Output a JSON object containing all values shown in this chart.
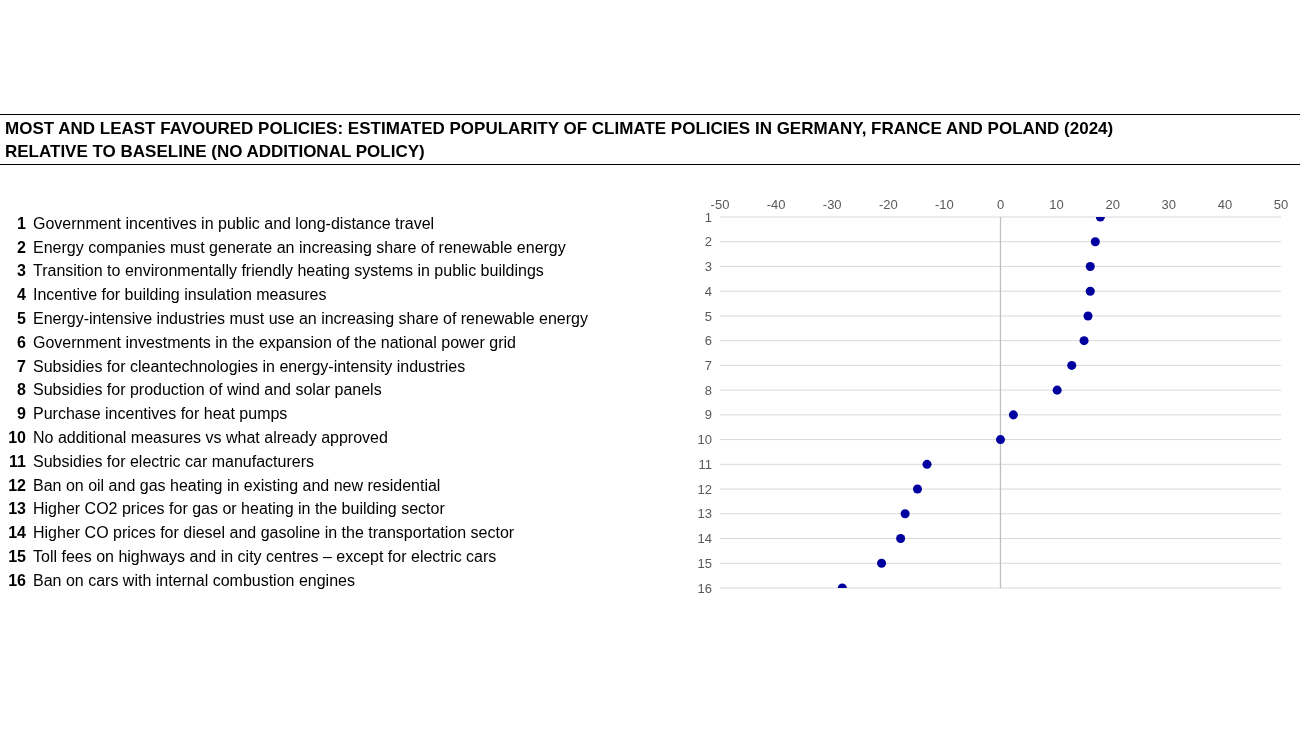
{
  "chart_data": {
    "type": "scatter",
    "orientation": "horizontal",
    "title": "MOST AND LEAST FAVOURED POLICIES: ESTIMATED POPULARITY OF CLIMATE POLICIES IN GERMANY, FRANCE AND POLAND (2024)",
    "subtitle": "RELATIVE TO BASELINE (NO ADDITIONAL POLICY)",
    "categories": [
      "1",
      "2",
      "3",
      "4",
      "5",
      "6",
      "7",
      "8",
      "9",
      "10",
      "11",
      "12",
      "13",
      "14",
      "15",
      "16"
    ],
    "values": [
      17.8,
      16.9,
      16.0,
      16.0,
      15.6,
      14.9,
      12.7,
      10.1,
      2.3,
      0,
      -13.1,
      -14.8,
      -17.0,
      -17.8,
      -21.2,
      -28.2
    ],
    "color": "#00009f",
    "marker": "circle",
    "xlim": [
      -50,
      50
    ],
    "xticks": [
      -50,
      -40,
      -30,
      -20,
      -10,
      0,
      10,
      20,
      30,
      40,
      50
    ],
    "grid": "y",
    "ref_lines": [
      {
        "axis": "x",
        "value": 0,
        "color": "#bfbfbf"
      }
    ],
    "annotations": [
      "1 Government incentives in public and long-distance travel",
      "2 Energy companies must generate an increasing share of renewable energy",
      "3 Transition to environmentally friendly heating systems in public buildings",
      "4 Incentive for building insulation measures",
      "5 Energy-intensive industries must use an increasing share of renewable energy",
      "6 Government investments in the expansion of the national power grid",
      "7 Subsidies for cleantechnologies in energy-intensity industries",
      "8 Subsidies for production of wind and solar panels",
      "9 Purchase incentives for heat pumps",
      "10 No additional measures vs what already approved",
      "11 Subsidies for electric car manufacturers",
      "12 Ban on oil and gas heating in existing and new residential",
      "13 Higher CO2 prices for gas or heating in the building sector",
      "14 Higher CO prices for diesel and gasoline in the transportation sector",
      "15 Toll fees on highways and in city centres – except for electric cars",
      "16 Ban on cars with internal combustion engines"
    ]
  }
}
